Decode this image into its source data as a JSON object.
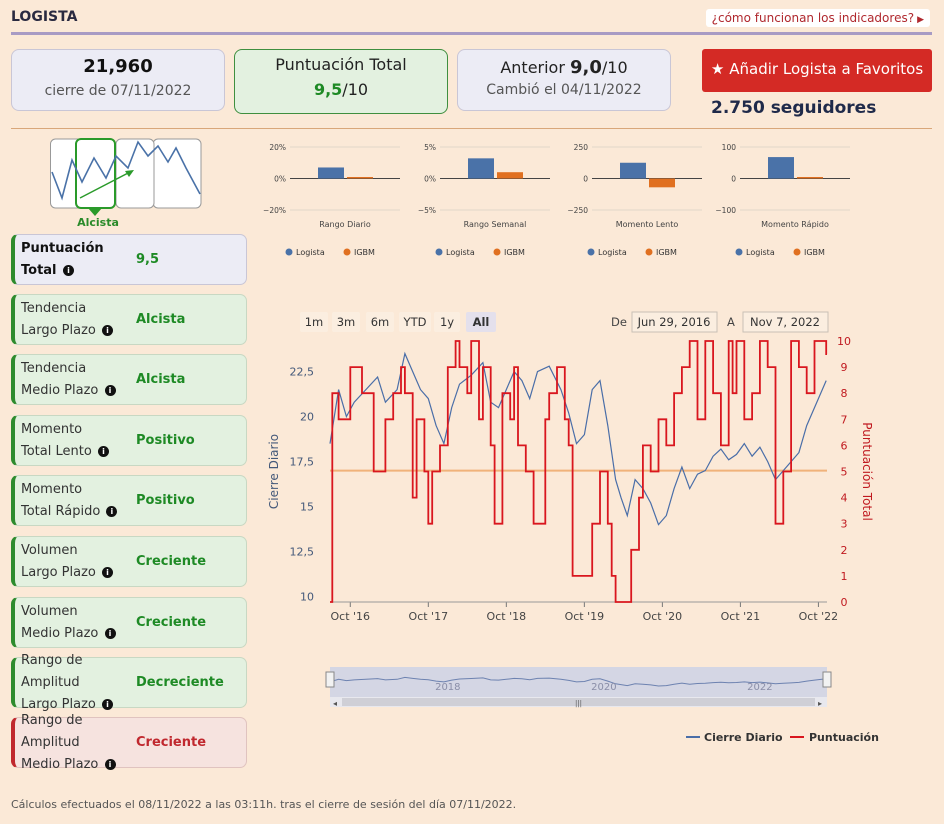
{
  "header": {
    "title": "LOGISTA",
    "help_link": "¿cómo funcionan los indicadores?"
  },
  "cards": {
    "price": {
      "value": "21,960",
      "sub": "cierre de 07/11/2022"
    },
    "score": {
      "label": "Puntuación Total",
      "value": "9,5",
      "suffix": "/10"
    },
    "previous": {
      "label": "Anterior",
      "value": "9,0",
      "suffix": "/10",
      "sub": "Cambió el 04/11/2022"
    }
  },
  "favorites_button": "Añadir Logista a Favoritos",
  "followers": "2.750 seguidores",
  "trend_thumb_label": "Alcista",
  "indicators": [
    {
      "name1": "Puntuación",
      "name2": "Total",
      "value": "9,5",
      "status": "positive"
    },
    {
      "name1": "Tendencia",
      "name2": "Largo Plazo",
      "value": "Alcista",
      "status": "positive"
    },
    {
      "name1": "Tendencia",
      "name2": "Medio Plazo",
      "value": "Alcista",
      "status": "positive"
    },
    {
      "name1": "Momento",
      "name2": "Total Lento",
      "value": "Positivo",
      "status": "positive"
    },
    {
      "name1": "Momento",
      "name2": "Total Rápido",
      "value": "Positivo",
      "status": "positive"
    },
    {
      "name1": "Volumen",
      "name2": "Largo Plazo",
      "value": "Creciente",
      "status": "positive"
    },
    {
      "name1": "Volumen",
      "name2": "Medio Plazo",
      "value": "Creciente",
      "status": "positive"
    },
    {
      "name1": "Rango de Amplitud",
      "name2": "Largo Plazo",
      "value": "Decreciente",
      "status": "positive"
    },
    {
      "name1": "Rango de Amplitud",
      "name2": "Medio Plazo",
      "value": "Creciente",
      "status": "negative"
    }
  ],
  "colors": {
    "logista": "#4a72a8",
    "igbm": "#e07020",
    "score_line": "#d9161e",
    "price_line": "#4a6ea8",
    "threshold": "#f0b27a"
  },
  "chart_data": [
    {
      "type": "bar",
      "title": "Rango Diario",
      "categories": [
        "Logista",
        "IGBM"
      ],
      "values": [
        7,
        0.5
      ],
      "yticks": [
        "20%",
        "0%",
        "−20%"
      ],
      "ylim": [
        -20,
        20
      ]
    },
    {
      "type": "bar",
      "title": "Rango Semanal",
      "categories": [
        "Logista",
        "IGBM"
      ],
      "values": [
        3.2,
        1.0
      ],
      "yticks": [
        "5%",
        "0%",
        "−5%"
      ],
      "ylim": [
        -5,
        5
      ]
    },
    {
      "type": "bar",
      "title": "Momento Lento",
      "categories": [
        "Logista",
        "IGBM"
      ],
      "values": [
        125,
        -70
      ],
      "yticks": [
        "250",
        "0",
        "−250"
      ],
      "ylim": [
        -250,
        250
      ]
    },
    {
      "type": "bar",
      "title": "Momento Rápido",
      "categories": [
        "Logista",
        "IGBM"
      ],
      "values": [
        68,
        4
      ],
      "yticks": [
        "100",
        "0",
        "−100"
      ],
      "ylim": [
        -100,
        100
      ]
    },
    {
      "type": "line",
      "range_buttons": [
        "1m",
        "3m",
        "6m",
        "YTD",
        "1y",
        "All"
      ],
      "active_range": "All",
      "from_label": "De",
      "from": "Jun 29, 2016",
      "to_label": "A",
      "to": "Nov 7, 2022",
      "ylabel_left": "Cierre Diario",
      "ylabel_right": "Puntuación Total",
      "yticks_left": [
        "22,5",
        "20",
        "17,5",
        "15",
        "12,5",
        "10"
      ],
      "yticks_right": [
        "10",
        "9",
        "8",
        "7",
        "6",
        "5",
        "4",
        "3",
        "2",
        "1",
        "0"
      ],
      "xticks": [
        "Oct '16",
        "Oct '17",
        "Oct '18",
        "Oct '19",
        "Oct '20",
        "Oct '21",
        "Oct '22"
      ],
      "navigator_ticks": [
        "2018",
        "2020",
        "2022"
      ],
      "ylim_left": [
        9.7,
        24.2
      ],
      "ylim_right": [
        0,
        10
      ],
      "threshold": 17,
      "legend": [
        "Cierre Diario",
        "Puntuación"
      ],
      "series": [
        {
          "name": "Cierre Diario",
          "x": [
            2016.49,
            2016.6,
            2016.7,
            2016.8,
            2016.95,
            2017.1,
            2017.2,
            2017.35,
            2017.45,
            2017.55,
            2017.65,
            2017.75,
            2017.85,
            2017.95,
            2018.05,
            2018.15,
            2018.3,
            2018.45,
            2018.55,
            2018.65,
            2018.75,
            2018.85,
            2018.95,
            2019.05,
            2019.15,
            2019.3,
            2019.45,
            2019.55,
            2019.65,
            2019.75,
            2019.85,
            2019.95,
            2020.05,
            2020.15,
            2020.22,
            2020.3,
            2020.4,
            2020.5,
            2020.6,
            2020.7,
            2020.8,
            2020.9,
            2021.0,
            2021.1,
            2021.2,
            2021.3,
            2021.4,
            2021.5,
            2021.6,
            2021.7,
            2021.8,
            2021.9,
            2022.0,
            2022.1,
            2022.2,
            2022.3,
            2022.4,
            2022.5,
            2022.6,
            2022.7,
            2022.85
          ],
          "y": [
            18.5,
            21.5,
            20.0,
            20.8,
            21.5,
            22.2,
            20.8,
            21.5,
            23.5,
            22.5,
            21.5,
            21.0,
            19.5,
            18.5,
            20.5,
            21.8,
            22.3,
            23.0,
            20.8,
            20.5,
            21.5,
            22.5,
            22.0,
            21.0,
            22.5,
            22.8,
            21.5,
            20.2,
            18.5,
            19.0,
            21.5,
            22.0,
            19.5,
            16.5,
            15.5,
            14.5,
            16.5,
            16.0,
            15.2,
            14.0,
            14.5,
            16.0,
            17.2,
            16.0,
            16.8,
            17.0,
            17.8,
            18.2,
            17.6,
            17.9,
            18.5,
            17.8,
            18.3,
            17.5,
            16.5,
            17.0,
            17.5,
            18.0,
            19.5,
            20.5,
            22.0
          ]
        },
        {
          "name": "Puntuación",
          "x": [
            2016.49,
            2016.52,
            2016.6,
            2016.75,
            2016.9,
            2017.05,
            2017.2,
            2017.3,
            2017.4,
            2017.45,
            2017.55,
            2017.6,
            2017.7,
            2017.75,
            2017.8,
            2017.9,
            2018.0,
            2018.1,
            2018.15,
            2018.25,
            2018.3,
            2018.4,
            2018.45,
            2018.55,
            2018.6,
            2018.7,
            2018.8,
            2018.85,
            2018.9,
            2019.0,
            2019.1,
            2019.25,
            2019.3,
            2019.4,
            2019.5,
            2019.55,
            2019.6,
            2019.75,
            2019.85,
            2019.95,
            2020.05,
            2020.1,
            2020.15,
            2020.2,
            2020.35,
            2020.45,
            2020.5,
            2020.6,
            2020.7,
            2020.8,
            2020.9,
            2021.0,
            2021.1,
            2021.2,
            2021.3,
            2021.4,
            2021.5,
            2021.6,
            2021.65,
            2021.7,
            2021.8,
            2021.9,
            2022.0,
            2022.1,
            2022.2,
            2022.3,
            2022.4,
            2022.5,
            2022.6,
            2022.7,
            2022.85
          ],
          "y": [
            0,
            8,
            7,
            9,
            8,
            5,
            7,
            8,
            9,
            8,
            4,
            7,
            5,
            3,
            5,
            6,
            9,
            10,
            9,
            8,
            10,
            7,
            9,
            6,
            3,
            8,
            7,
            9,
            6,
            5,
            3,
            7,
            8,
            9,
            7,
            6,
            1,
            1,
            3,
            5,
            3,
            1,
            0,
            0,
            2,
            4,
            6,
            5,
            7,
            6,
            8,
            9,
            10,
            7,
            10,
            8,
            6,
            10,
            8,
            10,
            7,
            8,
            10,
            9,
            3,
            5,
            10,
            9,
            8,
            10,
            9.5
          ]
        }
      ]
    }
  ],
  "footnote": "Cálculos efectuados el 08/11/2022 a las 03:11h. tras el cierre de sesión del día 07/11/2022."
}
